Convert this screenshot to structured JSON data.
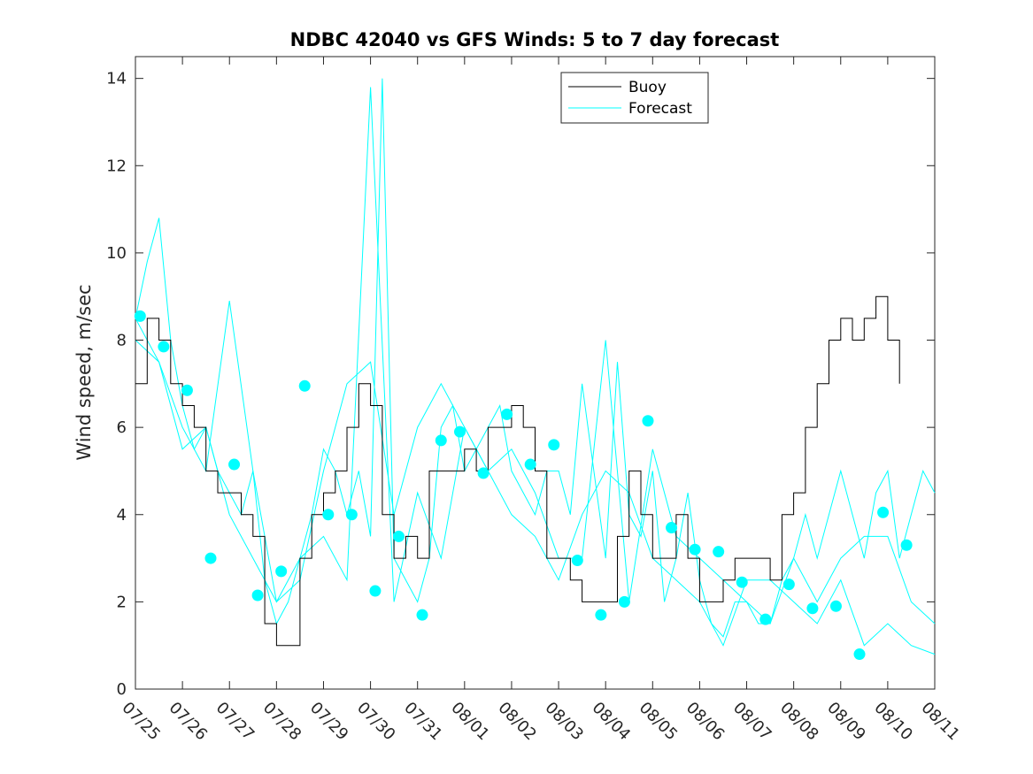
{
  "chart_data": {
    "type": "line",
    "title": "NDBC 42040 vs GFS Winds: 5 to 7 day forecast",
    "xlabel": "",
    "ylabel": "Wind speed, m/sec",
    "x_tick_labels": [
      "07/25",
      "07/26",
      "07/27",
      "07/28",
      "07/29",
      "07/30",
      "07/31",
      "08/01",
      "08/02",
      "08/03",
      "08/04",
      "08/05",
      "08/06",
      "08/07",
      "08/08",
      "08/09",
      "08/10",
      "08/11"
    ],
    "x_range_days": [
      0,
      17
    ],
    "ylim": [
      0,
      14.5
    ],
    "y_ticks": [
      0,
      2,
      4,
      6,
      8,
      10,
      12,
      14
    ],
    "legend": {
      "placement": "top-center",
      "entries": [
        "Buoy",
        "Forecast"
      ]
    },
    "colors": {
      "buoy": "#000000",
      "forecast": "#00ffff",
      "markers": "#00ffff"
    },
    "grid": false,
    "series": [
      {
        "name": "Buoy",
        "x_days": [
          0.0,
          0.25,
          0.5,
          0.75,
          1.0,
          1.25,
          1.5,
          1.75,
          2.0,
          2.25,
          2.5,
          2.75,
          3.0,
          3.25,
          3.5,
          3.75,
          4.0,
          4.25,
          4.5,
          4.75,
          5.0,
          5.25,
          5.5,
          5.75,
          6.0,
          6.25,
          6.5,
          6.75,
          7.0,
          7.25,
          7.5,
          7.75,
          8.0,
          8.25,
          8.5,
          8.75,
          9.0,
          9.25,
          9.5,
          9.75,
          10.0,
          10.25,
          10.5,
          10.75,
          11.0,
          11.25,
          11.5,
          11.75,
          12.0,
          12.25,
          12.5,
          12.75,
          13.0,
          13.25,
          13.5,
          13.75,
          14.0,
          14.25,
          14.5,
          14.75,
          15.0,
          15.25,
          15.5,
          15.75,
          16.0,
          16.25
        ],
        "values": [
          7,
          8.5,
          8,
          7,
          6.5,
          6,
          5,
          4.5,
          4.5,
          4,
          3.5,
          1.5,
          1,
          1,
          3,
          4,
          4.5,
          5,
          6,
          7,
          6.5,
          4,
          3,
          3.5,
          3,
          5,
          5,
          5,
          5.5,
          5,
          6,
          6,
          6.5,
          6,
          5,
          3,
          3,
          2.5,
          2,
          2,
          2,
          3.5,
          5,
          4,
          3,
          3,
          4,
          3,
          2,
          2,
          2.5,
          3,
          3,
          3,
          2.5,
          4,
          4.5,
          6,
          7,
          8,
          8.5,
          8,
          8.5,
          9,
          8,
          7
        ]
      },
      {
        "name": "Forecast",
        "x_days": [
          0.0,
          0.25,
          0.5,
          0.75,
          1.0,
          1.25,
          1.5,
          1.75,
          2.0,
          2.25,
          2.5,
          2.75,
          3.0,
          3.25,
          3.5,
          3.75,
          4.0,
          4.25,
          4.5,
          4.75,
          5.0,
          5.25,
          5.5,
          5.75,
          6.0,
          6.25,
          6.5,
          6.75,
          7.0,
          7.25,
          7.5,
          7.75,
          8.0,
          8.25,
          8.5,
          8.75,
          9.0,
          9.25,
          9.5,
          9.75,
          10.0,
          10.25,
          10.5,
          10.75,
          11.0,
          11.25,
          11.5,
          11.75,
          12.0,
          12.25,
          12.5,
          12.75,
          13.0,
          13.25,
          13.5,
          13.75,
          14.0,
          14.25,
          14.5,
          14.75,
          15.0,
          15.25,
          15.5,
          15.75,
          16.0,
          16.25,
          16.5,
          16.75,
          17.0
        ],
        "values": [
          8.5,
          9.8,
          10.8,
          8,
          6.5,
          5.5,
          6,
          5,
          4.5,
          4,
          5,
          2.5,
          1.5,
          2,
          3,
          4,
          5.5,
          5,
          4,
          5,
          3.5,
          14,
          3,
          2.5,
          2,
          3,
          6,
          6.5,
          5,
          5.5,
          6,
          6.5,
          5,
          4.5,
          4,
          5,
          5,
          4,
          7,
          5,
          3,
          7.5,
          4,
          3.5,
          5,
          2,
          3,
          4.5,
          2.5,
          1.5,
          1.2,
          2,
          2,
          1.5,
          1.5,
          2.5,
          3,
          4,
          3,
          4,
          5,
          4,
          3,
          4.5,
          5,
          3,
          4,
          5,
          4.5
        ]
      },
      {
        "name": "Forecast",
        "x_days": [
          0.0,
          0.5,
          1.0,
          1.5,
          2.0,
          2.5,
          3.0,
          3.5,
          4.0,
          4.5,
          5.0,
          5.5,
          6.0,
          6.5,
          7.0,
          7.5,
          8.0,
          8.5,
          9.0,
          9.5,
          10.0,
          10.5,
          11.0,
          11.5,
          12.0,
          12.5,
          13.0,
          13.5,
          14.0,
          14.5,
          15.0,
          15.5,
          16.0,
          16.5,
          17.0
        ],
        "values": [
          8.5,
          7.5,
          6,
          5,
          8.9,
          5,
          2,
          2.5,
          5,
          7,
          7.5,
          4,
          6,
          7,
          6,
          5,
          5.5,
          4.5,
          3,
          3,
          8,
          2,
          5.5,
          3.5,
          3,
          2.5,
          2,
          1.5,
          3,
          2,
          3,
          3.5,
          3.5,
          2,
          1.5
        ]
      },
      {
        "name": "Forecast",
        "x_days": [
          0.0,
          0.5,
          1.0,
          1.5,
          2.0,
          2.5,
          3.0,
          3.5,
          4.0,
          4.5,
          5.0,
          5.5,
          6.0,
          6.5,
          7.0,
          7.5,
          8.0,
          8.5,
          9.0,
          9.5,
          10.0,
          10.5,
          11.0,
          11.5,
          12.0,
          12.5,
          13.0,
          13.5,
          14.0,
          14.5,
          15.0,
          15.5,
          16.0,
          16.5,
          17.0
        ],
        "values": [
          8,
          7.5,
          5.5,
          6,
          4,
          3,
          2,
          3,
          3.5,
          2.5,
          13.8,
          2,
          4.5,
          3,
          6,
          5,
          4,
          3.5,
          2.5,
          4,
          5,
          4.5,
          3,
          2.5,
          2,
          1,
          2.5,
          2.5,
          2,
          1.5,
          2.5,
          1,
          1.5,
          1,
          0.8
        ]
      }
    ],
    "marker_points": {
      "x_days": [
        0.1,
        0.6,
        1.1,
        1.6,
        2.1,
        2.6,
        3.1,
        3.6,
        4.1,
        4.6,
        5.1,
        5.6,
        6.1,
        6.5,
        6.9,
        7.4,
        7.9,
        8.4,
        8.9,
        9.4,
        9.9,
        10.4,
        10.9,
        11.4,
        11.9,
        12.4,
        12.9,
        13.4,
        13.9,
        14.4,
        14.9,
        15.4,
        15.9,
        16.4
      ],
      "values": [
        8.55,
        7.85,
        6.85,
        3,
        5.15,
        2.15,
        2.7,
        6.95,
        4,
        4,
        2.25,
        3.5,
        1.7,
        5.7,
        5.9,
        4.95,
        6.3,
        5.15,
        5.6,
        2.95,
        1.7,
        2,
        6.15,
        3.7,
        3.2,
        3.15,
        2.45,
        1.6,
        2.4,
        1.85,
        1.9,
        0.8,
        4.05,
        3.3
      ]
    }
  }
}
